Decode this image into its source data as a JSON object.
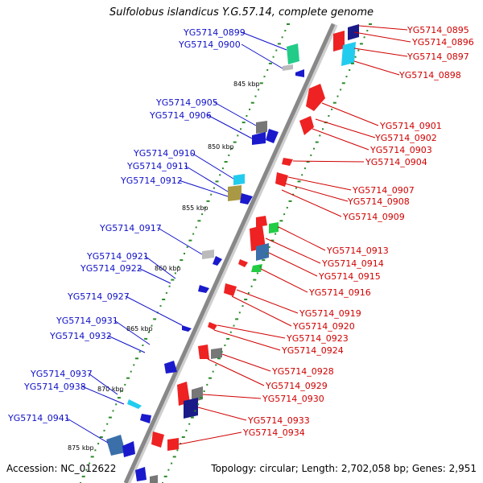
{
  "title": "Sulfolobus islandicus Y.G.57.14, complete genome",
  "footer": {
    "accession": "Accession: NC_012622",
    "topology": "Topology: circular; Length: 2,702,058 bp; Genes: 2,951"
  },
  "colors": {
    "backbone": "#888888",
    "left_label": "#1010c8",
    "right_label": "#d00000",
    "tick": "#2a8a2a"
  },
  "scale_labels": [
    "845 kbp",
    "850 kbp",
    "855 kbp",
    "860 kbp",
    "865 kbp",
    "870 kbp",
    "875 kbp"
  ],
  "left_genes": [
    "YG5714_0899",
    "YG5714_0900",
    "YG5714_0905",
    "YG5714_0906",
    "YG5714_0910",
    "YG5714_0911",
    "YG5714_0912",
    "YG5714_0917",
    "YG5714_0921",
    "YG5714_0922",
    "YG5714_0927",
    "YG5714_0931",
    "YG5714_0932",
    "YG5714_0937",
    "YG5714_0938",
    "YG5714_0941"
  ],
  "right_genes": [
    "YG5714_0895",
    "YG5714_0896",
    "YG5714_0897",
    "YG5714_0898",
    "YG5714_0901",
    "YG5714_0902",
    "YG5714_0903",
    "YG5714_0904",
    "YG5714_0907",
    "YG5714_0908",
    "YG5714_0909",
    "YG5714_0913",
    "YG5714_0914",
    "YG5714_0915",
    "YG5714_0916",
    "YG5714_0919",
    "YG5714_0920",
    "YG5714_0923",
    "YG5714_0924",
    "YG5714_0928",
    "YG5714_0929",
    "YG5714_0930",
    "YG5714_0933",
    "YG5714_0934"
  ]
}
